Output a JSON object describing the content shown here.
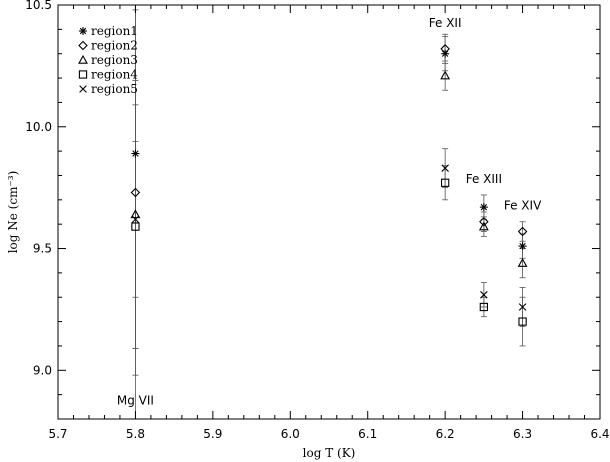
{
  "chart_data": {
    "type": "scatter",
    "xlabel": "log T (K)",
    "ylabel": "log Ne (cm⁻³)",
    "xlim": [
      5.7,
      6.4
    ],
    "ylim": [
      8.8,
      10.5
    ],
    "x_ticks": [
      "5.7",
      "5.8",
      "5.9",
      "6.0",
      "6.1",
      "6.2",
      "6.3",
      "6.4"
    ],
    "y_ticks": [
      "9.0",
      "9.5",
      "10.0",
      "10.5"
    ],
    "legend_position": "top-left",
    "grid": false,
    "series": [
      {
        "name": "region1",
        "marker": "asterisk",
        "points": [
          {
            "x": 5.8,
            "y": 9.89,
            "err": 1.1
          },
          {
            "x": 6.2,
            "y": 10.3,
            "err": 0.07
          },
          {
            "x": 6.25,
            "y": 9.67,
            "err": 0.05
          },
          {
            "x": 6.3,
            "y": 9.51,
            "err": 0.05
          }
        ]
      },
      {
        "name": "region2",
        "marker": "diamond",
        "points": [
          {
            "x": 5.8,
            "y": 9.73,
            "err": 0.75
          },
          {
            "x": 6.2,
            "y": 10.32,
            "err": 0.06
          },
          {
            "x": 6.25,
            "y": 9.61,
            "err": 0.04
          },
          {
            "x": 6.3,
            "y": 9.57,
            "err": 0.04
          }
        ]
      },
      {
        "name": "region3",
        "marker": "triangle",
        "points": [
          {
            "x": 5.8,
            "y": 9.64,
            "err": 0.55
          },
          {
            "x": 6.2,
            "y": 10.21,
            "err": 0.06
          },
          {
            "x": 6.25,
            "y": 9.59,
            "err": 0.04
          },
          {
            "x": 6.3,
            "y": 9.44,
            "err": 0.06
          }
        ]
      },
      {
        "name": "region4",
        "marker": "square",
        "points": [
          {
            "x": 5.8,
            "y": 9.59,
            "err": 0.5
          },
          {
            "x": 6.2,
            "y": 9.77,
            "err": 0.07
          },
          {
            "x": 6.25,
            "y": 9.26,
            "err": 0.04
          },
          {
            "x": 6.3,
            "y": 9.2,
            "err": 0.1
          }
        ]
      },
      {
        "name": "region5",
        "marker": "x",
        "points": [
          {
            "x": 5.8,
            "y": 9.62,
            "err": 0.32
          },
          {
            "x": 6.2,
            "y": 9.83,
            "err": 0.08
          },
          {
            "x": 6.25,
            "y": 9.31,
            "err": 0.05
          },
          {
            "x": 6.3,
            "y": 9.26,
            "err": 0.08
          }
        ]
      }
    ],
    "annotations": [
      {
        "text": "Fe XII",
        "x": 6.2,
        "y": 10.41
      },
      {
        "text": "Fe XIII",
        "x": 6.25,
        "y": 9.77
      },
      {
        "text": "Fe XIV",
        "x": 6.3,
        "y": 9.66
      },
      {
        "text": "Mg VII",
        "x": 5.8,
        "y": 8.86
      }
    ]
  }
}
